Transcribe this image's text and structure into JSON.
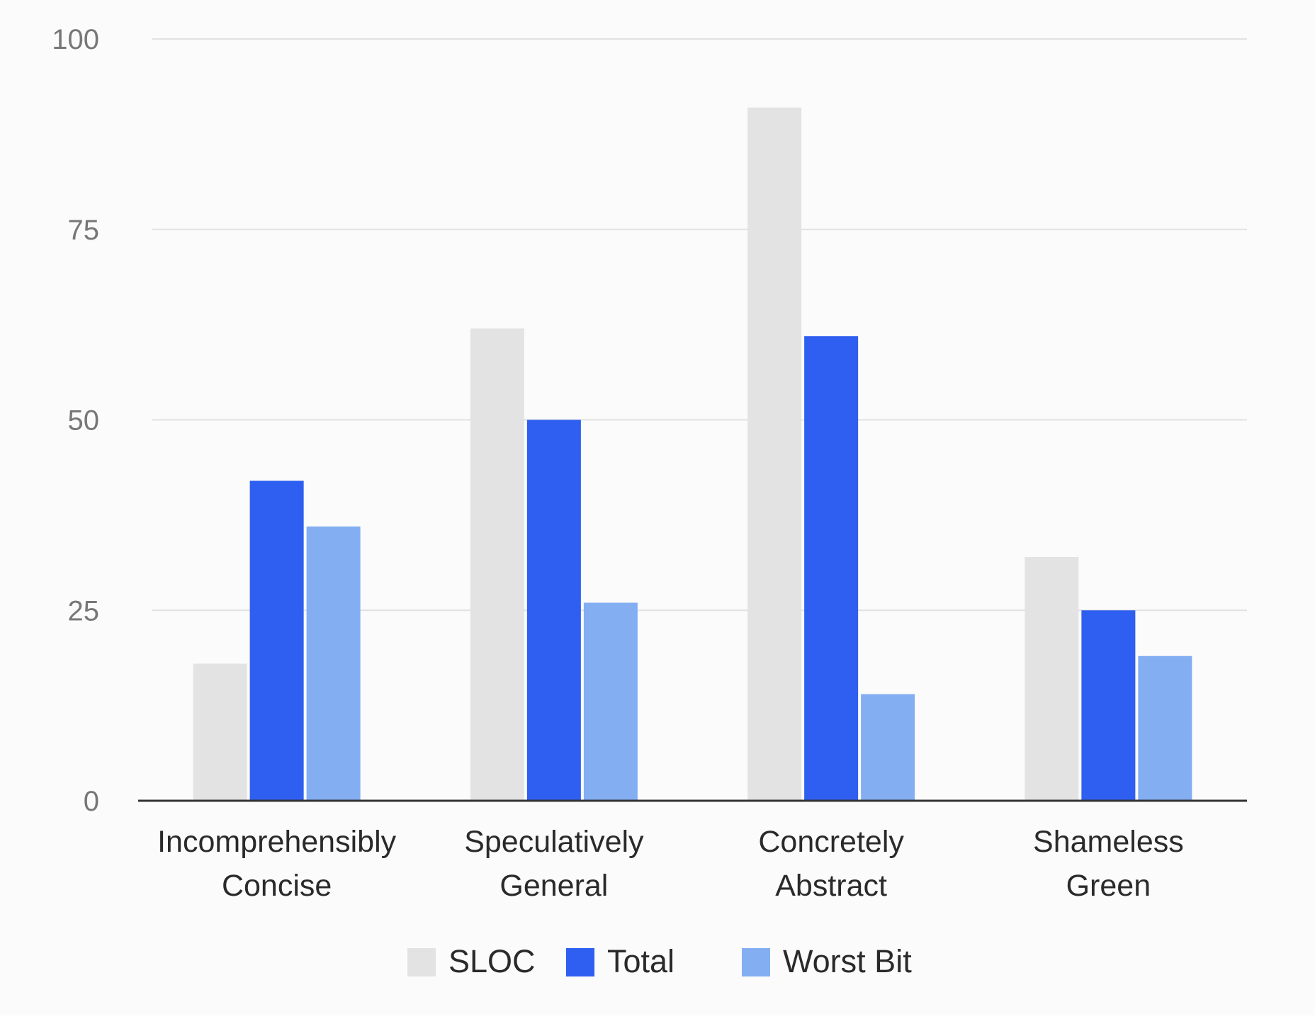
{
  "chart_data": {
    "type": "bar",
    "title": "",
    "xlabel": "",
    "ylabel": "",
    "ylim": [
      0,
      100
    ],
    "yticks": [
      0,
      25,
      50,
      75,
      100
    ],
    "grid": true,
    "legend_position": "bottom",
    "categories": [
      [
        "Incomprehensibly",
        "Concise"
      ],
      [
        "Speculatively",
        "General"
      ],
      [
        "Concretely",
        "Abstract"
      ],
      [
        "Shameless",
        "Green"
      ]
    ],
    "series": [
      {
        "name": "SLOC",
        "color": "#e3e3e3",
        "values": [
          18,
          62,
          91,
          32
        ]
      },
      {
        "name": "Total",
        "color": "#2f5ff0",
        "values": [
          42,
          50,
          61,
          25
        ]
      },
      {
        "name": "Worst Bit",
        "color": "#84aef2",
        "values": [
          36,
          26,
          14,
          19
        ]
      }
    ]
  }
}
